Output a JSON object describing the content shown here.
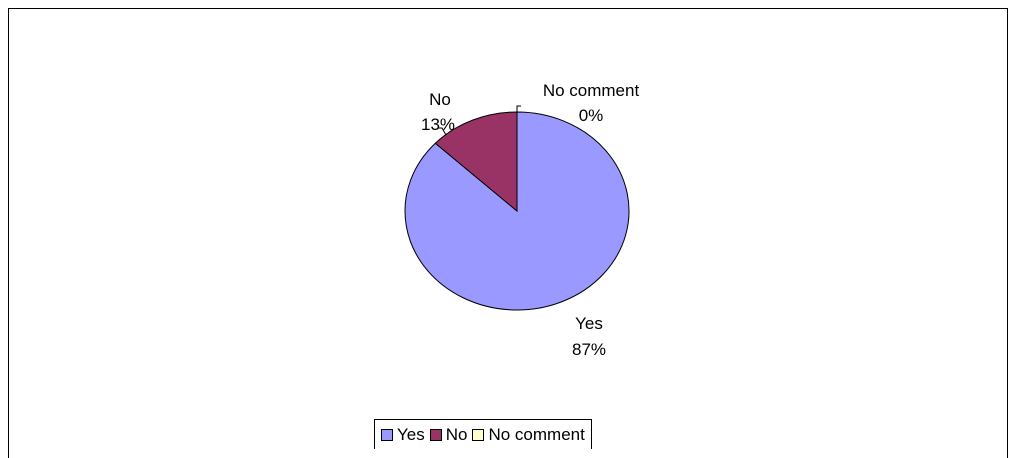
{
  "chart_data": {
    "type": "pie",
    "slices": [
      {
        "label": "Yes",
        "value": 87,
        "pct_label": "87%",
        "color": "#9999ff"
      },
      {
        "label": "No",
        "value": 13,
        "pct_label": "13%",
        "color": "#993366"
      },
      {
        "label": "No comment",
        "value": 0,
        "pct_label": "0%",
        "color": "#ffffcc"
      }
    ],
    "legend_position": "bottom",
    "start_angle_deg": 0,
    "direction": "clockwise"
  }
}
